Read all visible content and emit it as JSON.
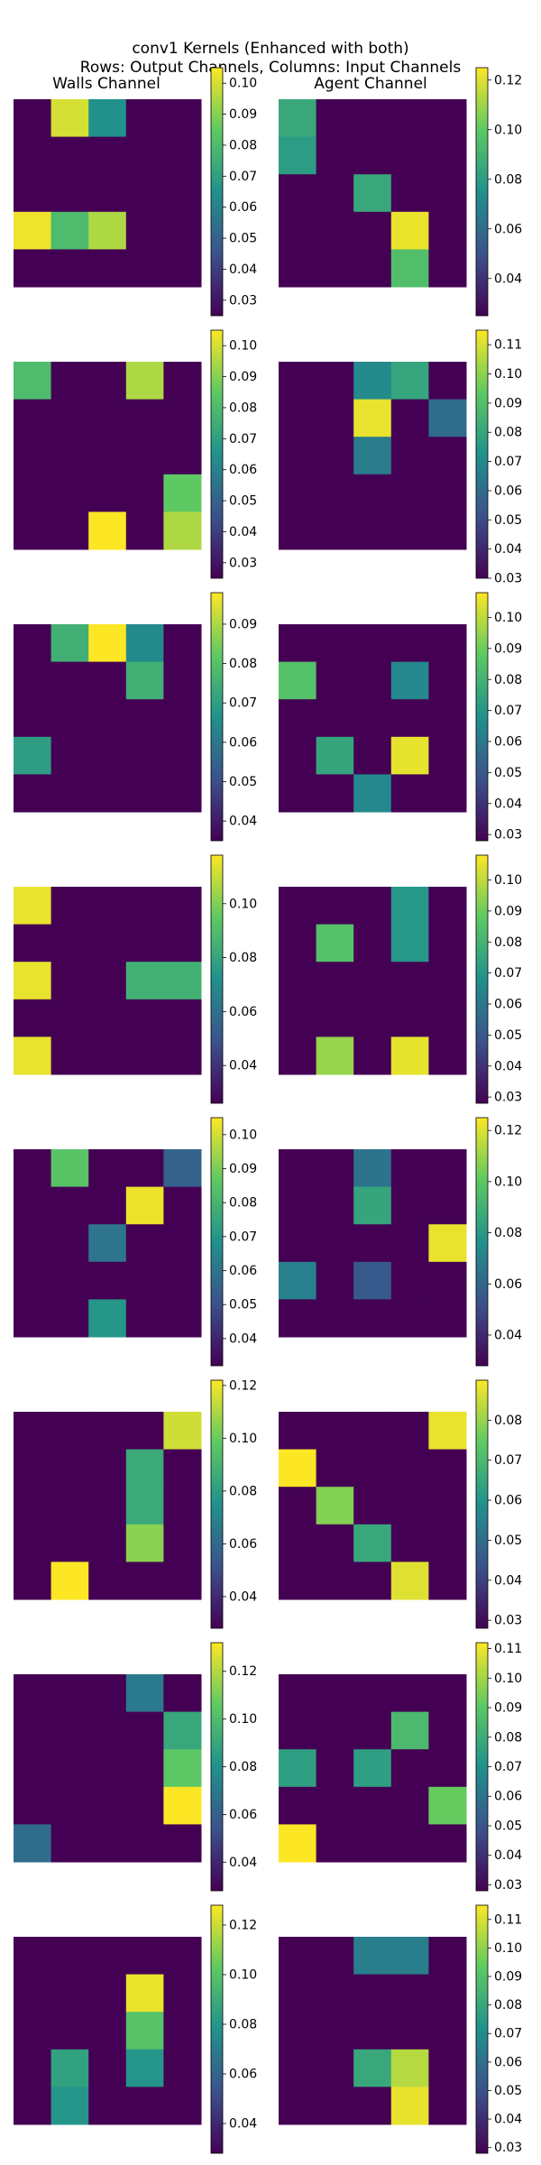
{
  "figure": {
    "title_line1": "conv1 Kernels (Enhanced with both)",
    "title_line2": "Rows: Output Channels, Columns: Input Channels",
    "column_titles": [
      "Walls Channel",
      "Agent Channel"
    ]
  },
  "colormap": {
    "name": "viridis",
    "stops": [
      "#440154",
      "#3b528b",
      "#21918c",
      "#5ec962",
      "#fde725"
    ]
  },
  "chart_data": {
    "type": "heatmap",
    "rows": 8,
    "columns": [
      "Walls Channel",
      "Agent Channel"
    ],
    "kernel_size": [
      5,
      5
    ],
    "kernels": [
      {
        "row": 0,
        "column": "Walls Channel",
        "colorbar": {
          "range": [
            0.025,
            0.105
          ],
          "ticks": [
            "0.03",
            "0.04",
            "0.05",
            "0.06",
            "0.07",
            "0.08",
            "0.09",
            "0.10"
          ]
        },
        "values": [
          [
            0.025,
            0.1,
            0.065,
            0.025,
            0.025
          ],
          [
            0.025,
            0.025,
            0.025,
            0.025,
            0.025
          ],
          [
            0.025,
            0.025,
            0.025,
            0.025,
            0.025
          ],
          [
            0.103,
            0.08,
            0.095,
            0.025,
            0.025
          ],
          [
            0.025,
            0.025,
            0.025,
            0.025,
            0.025
          ]
        ]
      },
      {
        "row": 0,
        "column": "Agent Channel",
        "colorbar": {
          "range": [
            0.025,
            0.125
          ],
          "ticks": [
            "0.04",
            "0.06",
            "0.08",
            "0.10",
            "0.12"
          ]
        },
        "values": [
          [
            0.085,
            0.025,
            0.025,
            0.025,
            0.025
          ],
          [
            0.08,
            0.025,
            0.025,
            0.025,
            0.025
          ],
          [
            0.025,
            0.025,
            0.085,
            0.025,
            0.025
          ],
          [
            0.025,
            0.025,
            0.025,
            0.122,
            0.025
          ],
          [
            0.025,
            0.025,
            0.025,
            0.095,
            0.025
          ]
        ]
      },
      {
        "row": 1,
        "column": "Walls Channel",
        "colorbar": {
          "range": [
            0.025,
            0.105
          ],
          "ticks": [
            "0.03",
            "0.04",
            "0.05",
            "0.06",
            "0.07",
            "0.08",
            "0.09",
            "0.10"
          ]
        },
        "values": [
          [
            0.08,
            0.025,
            0.025,
            0.095,
            0.025
          ],
          [
            0.025,
            0.025,
            0.025,
            0.025,
            0.025
          ],
          [
            0.025,
            0.025,
            0.025,
            0.025,
            0.025
          ],
          [
            0.025,
            0.025,
            0.025,
            0.025,
            0.085
          ],
          [
            0.025,
            0.025,
            0.105,
            0.025,
            0.095
          ]
        ]
      },
      {
        "row": 1,
        "column": "Agent Channel",
        "colorbar": {
          "range": [
            0.03,
            0.115
          ],
          "ticks": [
            "0.03",
            "0.04",
            "0.05",
            "0.06",
            "0.07",
            "0.08",
            "0.09",
            "0.10",
            "0.11"
          ]
        },
        "values": [
          [
            0.03,
            0.03,
            0.07,
            0.08,
            0.03
          ],
          [
            0.03,
            0.03,
            0.112,
            0.03,
            0.06
          ],
          [
            0.03,
            0.03,
            0.065,
            0.03,
            0.03
          ],
          [
            0.03,
            0.03,
            0.03,
            0.03,
            0.03
          ],
          [
            0.03,
            0.03,
            0.03,
            0.03,
            0.03
          ]
        ]
      },
      {
        "row": 2,
        "column": "Walls Channel",
        "colorbar": {
          "range": [
            0.035,
            0.098
          ],
          "ticks": [
            "0.04",
            "0.05",
            "0.06",
            "0.07",
            "0.08",
            "0.09"
          ]
        },
        "values": [
          [
            0.035,
            0.075,
            0.098,
            0.065,
            0.035
          ],
          [
            0.035,
            0.035,
            0.035,
            0.075,
            0.035
          ],
          [
            0.035,
            0.035,
            0.035,
            0.035,
            0.035
          ],
          [
            0.07,
            0.035,
            0.035,
            0.035,
            0.035
          ],
          [
            0.035,
            0.035,
            0.035,
            0.035,
            0.035
          ]
        ]
      },
      {
        "row": 2,
        "column": "Agent Channel",
        "colorbar": {
          "range": [
            0.028,
            0.108
          ],
          "ticks": [
            "0.03",
            "0.04",
            "0.05",
            "0.06",
            "0.07",
            "0.08",
            "0.09",
            "0.10"
          ]
        },
        "values": [
          [
            0.028,
            0.028,
            0.028,
            0.028,
            0.028
          ],
          [
            0.085,
            0.028,
            0.028,
            0.065,
            0.028
          ],
          [
            0.028,
            0.028,
            0.028,
            0.028,
            0.028
          ],
          [
            0.028,
            0.075,
            0.028,
            0.105,
            0.028
          ],
          [
            0.028,
            0.028,
            0.065,
            0.028,
            0.028
          ]
        ]
      },
      {
        "row": 3,
        "column": "Walls Channel",
        "colorbar": {
          "range": [
            0.026,
            0.118
          ],
          "ticks": [
            "0.04",
            "0.06",
            "0.08",
            "0.10"
          ]
        },
        "values": [
          [
            0.115,
            0.026,
            0.026,
            0.026,
            0.026
          ],
          [
            0.026,
            0.026,
            0.026,
            0.026,
            0.026
          ],
          [
            0.115,
            0.026,
            0.026,
            0.085,
            0.085
          ],
          [
            0.026,
            0.026,
            0.026,
            0.026,
            0.026
          ],
          [
            0.115,
            0.026,
            0.026,
            0.026,
            0.026
          ]
        ]
      },
      {
        "row": 3,
        "column": "Agent Channel",
        "colorbar": {
          "range": [
            0.028,
            0.108
          ],
          "ticks": [
            "0.03",
            "0.04",
            "0.05",
            "0.06",
            "0.07",
            "0.08",
            "0.09",
            "0.10"
          ]
        },
        "values": [
          [
            0.028,
            0.028,
            0.028,
            0.07,
            0.028
          ],
          [
            0.028,
            0.085,
            0.028,
            0.07,
            0.028
          ],
          [
            0.028,
            0.028,
            0.028,
            0.028,
            0.028
          ],
          [
            0.028,
            0.028,
            0.028,
            0.028,
            0.028
          ],
          [
            0.028,
            0.095,
            0.028,
            0.105,
            0.028
          ]
        ]
      },
      {
        "row": 4,
        "column": "Walls Channel",
        "colorbar": {
          "range": [
            0.032,
            0.105
          ],
          "ticks": [
            "0.04",
            "0.05",
            "0.06",
            "0.07",
            "0.08",
            "0.09",
            "0.10"
          ]
        },
        "values": [
          [
            0.032,
            0.085,
            0.032,
            0.032,
            0.055
          ],
          [
            0.032,
            0.032,
            0.032,
            0.103,
            0.032
          ],
          [
            0.032,
            0.032,
            0.06,
            0.032,
            0.032
          ],
          [
            0.032,
            0.032,
            0.032,
            0.032,
            0.032
          ],
          [
            0.032,
            0.032,
            0.07,
            0.032,
            0.032
          ]
        ]
      },
      {
        "row": 4,
        "column": "Agent Channel",
        "colorbar": {
          "range": [
            0.028,
            0.125
          ],
          "ticks": [
            "0.04",
            "0.06",
            "0.08",
            "0.10",
            "0.12"
          ]
        },
        "values": [
          [
            0.028,
            0.028,
            0.065,
            0.028,
            0.028
          ],
          [
            0.028,
            0.028,
            0.085,
            0.028,
            0.028
          ],
          [
            0.028,
            0.028,
            0.028,
            0.028,
            0.122
          ],
          [
            0.07,
            0.028,
            0.055,
            0.028,
            0.028
          ],
          [
            0.028,
            0.028,
            0.028,
            0.028,
            0.028
          ]
        ]
      },
      {
        "row": 5,
        "column": "Walls Channel",
        "colorbar": {
          "range": [
            0.028,
            0.122
          ],
          "ticks": [
            "0.04",
            "0.06",
            "0.08",
            "0.10",
            "0.12"
          ]
        },
        "values": [
          [
            0.028,
            0.028,
            0.028,
            0.028,
            0.115
          ],
          [
            0.028,
            0.028,
            0.028,
            0.085,
            0.028
          ],
          [
            0.028,
            0.028,
            0.028,
            0.085,
            0.028
          ],
          [
            0.028,
            0.028,
            0.028,
            0.105,
            0.028
          ],
          [
            0.028,
            0.122,
            0.028,
            0.028,
            0.028
          ]
        ]
      },
      {
        "row": 5,
        "column": "Agent Channel",
        "colorbar": {
          "range": [
            0.028,
            0.09
          ],
          "ticks": [
            "0.03",
            "0.04",
            "0.05",
            "0.06",
            "0.07",
            "0.08"
          ]
        },
        "values": [
          [
            0.028,
            0.028,
            0.028,
            0.028,
            0.088
          ],
          [
            0.09,
            0.028,
            0.028,
            0.028,
            0.028
          ],
          [
            0.028,
            0.078,
            0.028,
            0.028,
            0.028
          ],
          [
            0.028,
            0.028,
            0.065,
            0.028,
            0.028
          ],
          [
            0.028,
            0.028,
            0.028,
            0.087,
            0.028
          ]
        ]
      },
      {
        "row": 6,
        "column": "Walls Channel",
        "colorbar": {
          "range": [
            0.028,
            0.132
          ],
          "ticks": [
            "0.04",
            "0.06",
            "0.08",
            "0.10",
            "0.12"
          ]
        },
        "values": [
          [
            0.028,
            0.028,
            0.028,
            0.07,
            0.028
          ],
          [
            0.028,
            0.028,
            0.028,
            0.028,
            0.09
          ],
          [
            0.028,
            0.028,
            0.028,
            0.028,
            0.105
          ],
          [
            0.028,
            0.028,
            0.028,
            0.028,
            0.132
          ],
          [
            0.065,
            0.028,
            0.028,
            0.028,
            0.028
          ]
        ]
      },
      {
        "row": 6,
        "column": "Agent Channel",
        "colorbar": {
          "range": [
            0.028,
            0.112
          ],
          "ticks": [
            "0.03",
            "0.04",
            "0.05",
            "0.06",
            "0.07",
            "0.08",
            "0.09",
            "0.10",
            "0.11"
          ]
        },
        "values": [
          [
            0.028,
            0.028,
            0.028,
            0.028,
            0.028
          ],
          [
            0.028,
            0.028,
            0.028,
            0.085,
            0.028
          ],
          [
            0.075,
            0.028,
            0.075,
            0.028,
            0.028
          ],
          [
            0.028,
            0.028,
            0.028,
            0.028,
            0.092
          ],
          [
            0.112,
            0.028,
            0.028,
            0.028,
            0.028
          ]
        ]
      },
      {
        "row": 7,
        "column": "Walls Channel",
        "colorbar": {
          "range": [
            0.028,
            0.128
          ],
          "ticks": [
            "0.04",
            "0.06",
            "0.08",
            "0.10",
            "0.12"
          ]
        },
        "values": [
          [
            0.028,
            0.028,
            0.028,
            0.028,
            0.028
          ],
          [
            0.028,
            0.028,
            0.028,
            0.125,
            0.028
          ],
          [
            0.028,
            0.028,
            0.028,
            0.1,
            0.028
          ],
          [
            0.028,
            0.085,
            0.028,
            0.08,
            0.028
          ],
          [
            0.028,
            0.08,
            0.028,
            0.028,
            0.028
          ]
        ]
      },
      {
        "row": 7,
        "column": "Agent Channel",
        "colorbar": {
          "range": [
            0.028,
            0.115
          ],
          "ticks": [
            "0.03",
            "0.04",
            "0.05",
            "0.06",
            "0.07",
            "0.08",
            "0.09",
            "0.10",
            "0.11"
          ]
        },
        "values": [
          [
            0.028,
            0.028,
            0.065,
            0.065,
            0.028
          ],
          [
            0.028,
            0.028,
            0.028,
            0.028,
            0.028
          ],
          [
            0.028,
            0.028,
            0.028,
            0.028,
            0.028
          ],
          [
            0.028,
            0.028,
            0.08,
            0.105,
            0.028
          ],
          [
            0.028,
            0.028,
            0.028,
            0.112,
            0.028
          ]
        ]
      }
    ]
  }
}
